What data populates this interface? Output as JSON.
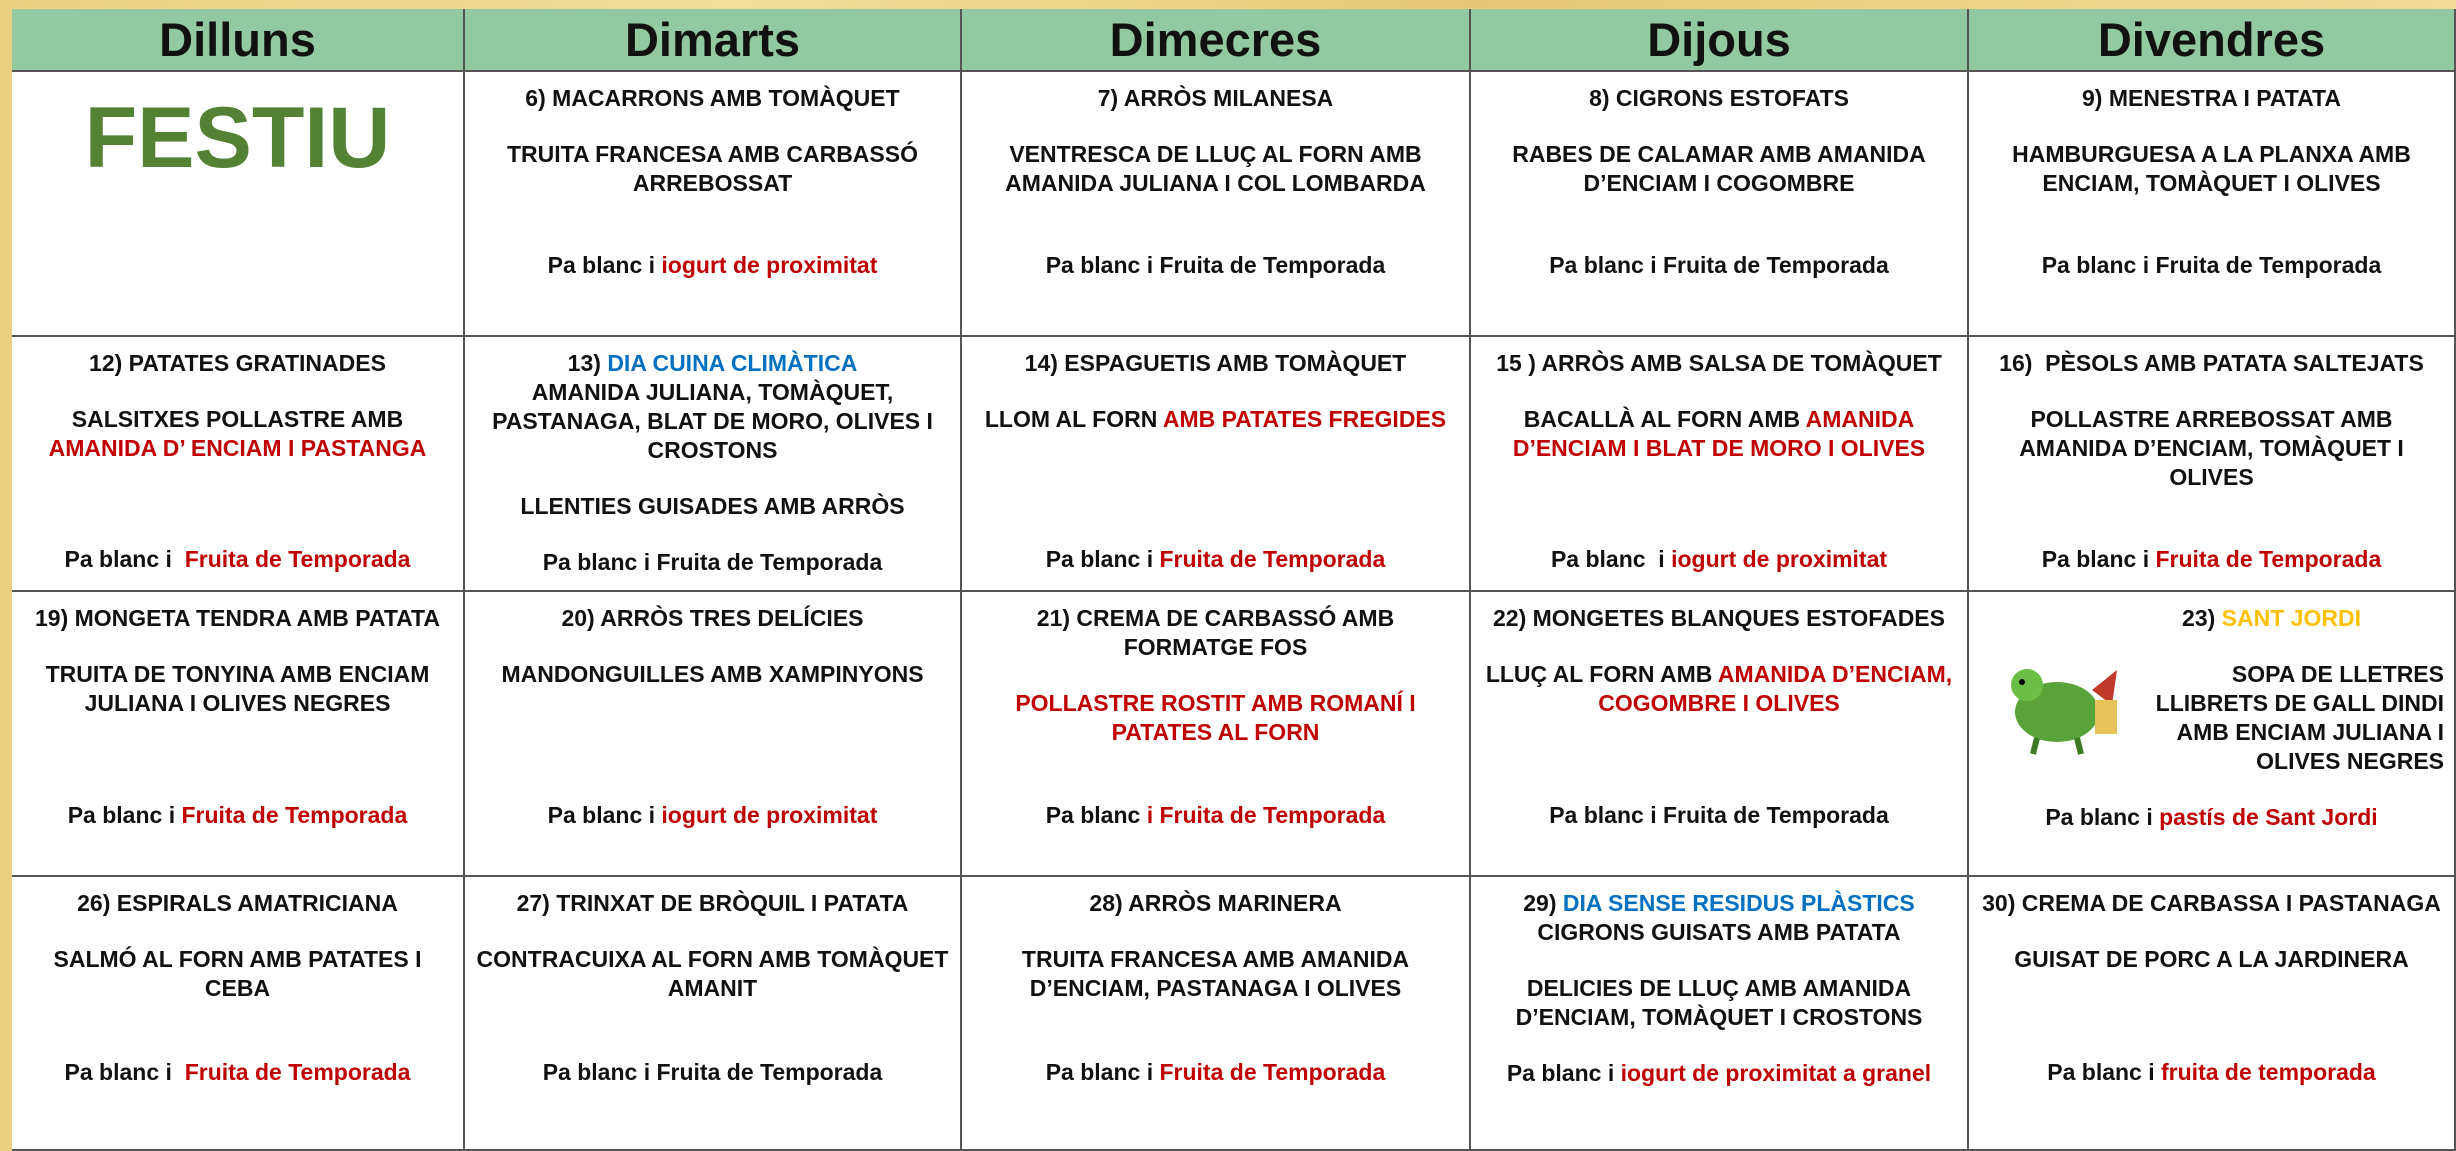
{
  "table": {
    "header": [
      "Dilluns",
      "Dimarts",
      "Dimecres",
      "Dijous",
      "Divendres"
    ],
    "rows": [
      [
        {
          "big": {
            "text": "FESTIU",
            "color": "#548235"
          }
        },
        {
          "paragraphs": [
            [
              [
                "6) MACARRONS AMB TOMÀQUET"
              ]
            ],
            [
              [
                "TRUITA FRANCESA AMB CARBASSÓ ARREBOSSAT"
              ]
            ],
            [
              [
                "Pa blanc i ",
                {
                  "text": "iogurt de proximitat",
                  "color": "#c00000"
                }
              ]
            ]
          ]
        },
        {
          "paragraphs": [
            [
              [
                "7) ARRÒS MILANESA"
              ]
            ],
            [
              [
                "VENTRESCA DE LLUÇ AL FORN AMB AMANIDA JULIANA I COL LOMBARDA"
              ]
            ],
            [
              [
                "Pa blanc i Fruita de Temporada"
              ]
            ]
          ]
        },
        {
          "paragraphs": [
            [
              [
                "8) CIGRONS ESTOFATS"
              ]
            ],
            [
              [
                "RABES DE CALAMAR AMB AMANIDA D’ENCIAM I COGOMBRE"
              ]
            ],
            [
              [
                "Pa blanc i Fruita de Temporada"
              ]
            ]
          ]
        },
        {
          "paragraphs": [
            [
              [
                "9) MENESTRA I PATATA"
              ]
            ],
            [
              [
                "HAMBURGUESA A LA PLANXA AMB ENCIAM, TOMÀQUET I OLIVES"
              ]
            ],
            [
              [
                "Pa blanc i Fruita de Temporada"
              ]
            ]
          ]
        }
      ],
      [
        {
          "paragraphs": [
            [
              [
                "12) PATATES GRATINADES"
              ]
            ],
            [
              [
                "SALSITXES POLLASTRE AMB ",
                {
                  "text": "AMANIDA D’ ENCIAM I PASTANGA",
                  "color": "#c00000"
                }
              ]
            ],
            [
              [
                "Pa blanc i  ",
                {
                  "text": "Fruita de Temporada",
                  "color": "#c00000"
                }
              ]
            ]
          ]
        },
        {
          "paragraphs": [
            [
              [
                "13) ",
                {
                  "text": "DIA CUINA CLIMÀTICA",
                  "color": "#0070c0"
                }
              ],
              [
                "AMANIDA JULIANA, TOMÀQUET, PASTANAGA, BLAT DE MORO, OLIVES I CROSTONS"
              ]
            ],
            [
              [
                "LLENTIES GUISADES AMB ARRÒS"
              ]
            ],
            [
              [
                "Pa blanc i Fruita de Temporada"
              ]
            ]
          ]
        },
        {
          "paragraphs": [
            [
              [
                "14) ESPAGUETIS AMB TOMÀQUET"
              ]
            ],
            [
              [
                "LLOM AL FORN ",
                {
                  "text": "AMB PATATES FREGIDES",
                  "color": "#c00000"
                }
              ]
            ],
            [
              [
                "Pa blanc i ",
                {
                  "text": "Fruita de Temporada",
                  "color": "#c00000"
                }
              ]
            ]
          ]
        },
        {
          "paragraphs": [
            [
              [
                "15 ) ARRÒS AMB SALSA DE TOMÀQUET"
              ]
            ],
            [
              [
                "BACALLÀ AL FORN AMB ",
                {
                  "text": "AMANIDA D’ENCIAM I BLAT DE MORO I OLIVES",
                  "color": "#c00000"
                }
              ]
            ],
            [
              [
                "Pa blanc  i ",
                {
                  "text": "iogurt de proximitat",
                  "color": "#c00000"
                }
              ]
            ]
          ]
        },
        {
          "paragraphs": [
            [
              [
                "16)  PÈSOLS AMB PATATA SALTEJATS"
              ]
            ],
            [
              [
                "POLLASTRE ARREBOSSAT AMB AMANIDA D’ENCIAM, TOMÀQUET I OLIVES"
              ]
            ],
            [
              [
                "Pa blanc i ",
                {
                  "text": "Fruita de Temporada",
                  "color": "#c00000"
                }
              ]
            ]
          ]
        }
      ],
      [
        {
          "paragraphs": [
            [
              [
                "19) MONGETA TENDRA AMB PATATA"
              ]
            ],
            [
              [
                "TRUITA DE TONYINA AMB ENCIAM JULIANA I OLIVES NEGRES"
              ]
            ],
            [
              [
                "Pa blanc i ",
                {
                  "text": "Fruita de Temporada",
                  "color": "#c00000"
                }
              ]
            ]
          ]
        },
        {
          "paragraphs": [
            [
              [
                "20) ARRÒS TRES DELÍCIES"
              ]
            ],
            [
              [
                "MANDONGUILLES AMB XAMPINYONS"
              ]
            ],
            [
              [
                "Pa blanc i ",
                {
                  "text": "iogurt de proximitat",
                  "color": "#c00000"
                }
              ]
            ]
          ]
        },
        {
          "paragraphs": [
            [
              [
                "21) CREMA DE CARBASSÓ AMB FORMATGE FOS"
              ]
            ],
            [
              [
                {
                  "text": "POLLASTRE ROSTIT AMB ROMANÍ I PATATES AL FORN",
                  "color": "#c00000"
                }
              ]
            ],
            [
              [
                "Pa blanc ",
                {
                  "text": "i Fruita de Temporada",
                  "color": "#c00000"
                }
              ]
            ]
          ]
        },
        {
          "paragraphs": [
            [
              [
                "22) MONGETES BLANQUES ESTOFADES"
              ]
            ],
            [
              [
                "LLUÇ AL FORN AMB ",
                {
                  "text": "AMANIDA D’ENCIAM, COGOMBRE I OLIVES",
                  "color": "#c00000"
                }
              ]
            ],
            [
              [
                "Pa blanc i Fruita de Temporada"
              ]
            ]
          ]
        },
        {
          "picture": true,
          "paragraphs": [
            [
              [
                "23) ",
                {
                  "text": "SANT JORDI",
                  "color": "#ffc000"
                }
              ]
            ],
            [
              [
                "SOPA DE LLETRES LLIBRETS DE GALL DINDI AMB ENCIAM JULIANA I OLIVES NEGRES"
              ]
            ],
            [
              [
                "Pa blanc i ",
                {
                  "text": "pastís de Sant Jordi",
                  "color": "#c00000"
                }
              ]
            ]
          ]
        }
      ],
      [
        {
          "paragraphs": [
            [
              [
                "26) ESPIRALS AMATRICIANA"
              ]
            ],
            [
              [
                "SALMÓ AL FORN AMB PATATES I CEBA"
              ]
            ],
            [
              [
                "Pa blanc i  ",
                {
                  "text": "Fruita de Temporada",
                  "color": "#c00000"
                }
              ]
            ]
          ]
        },
        {
          "paragraphs": [
            [
              [
                "27) TRINXAT DE BRÒQUIL I PATATA"
              ]
            ],
            [
              [
                "CONTRACUIXA AL FORN AMB TOMÀQUET AMANIT"
              ]
            ],
            [
              [
                "Pa blanc i Fruita de Temporada"
              ]
            ]
          ]
        },
        {
          "paragraphs": [
            [
              [
                "28) ARRÒS MARINERA"
              ]
            ],
            [
              [
                "TRUITA FRANCESA AMB AMANIDA D’ENCIAM, PASTANAGA I OLIVES"
              ]
            ],
            [
              [
                "Pa blanc i ",
                {
                  "text": "Fruita de Temporada",
                  "color": "#c00000"
                }
              ]
            ]
          ]
        },
        {
          "paragraphs": [
            [
              [
                "29) ",
                {
                  "text": "DIA SENSE RESIDUS PLÀSTICS",
                  "color": "#0070c0"
                }
              ],
              [
                "CIGRONS GUISATS AMB PATATA"
              ]
            ],
            [
              [
                "DELICIES DE LLUÇ AMB AMANIDA D’ENCIAM, TOMÀQUET I CROSTONS"
              ]
            ],
            [
              [
                "Pa blanc i ",
                {
                  "text": "iogurt de proximitat a granel",
                  "color": "#c00000"
                }
              ]
            ]
          ]
        },
        {
          "paragraphs": [
            [
              [
                "30) CREMA DE CARBASSA I PASTANAGA"
              ]
            ],
            [
              [
                "GUISAT DE PORC A LA JARDINERA"
              ]
            ],
            [
              [
                "Pa blanc i ",
                {
                  "text": "fruita de temporada",
                  "color": "#c00000"
                }
              ]
            ]
          ]
        }
      ]
    ]
  }
}
